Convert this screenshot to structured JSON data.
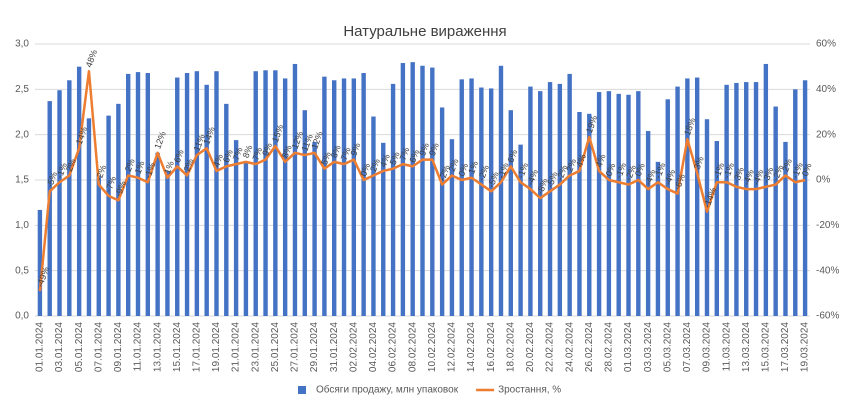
{
  "chart_data": {
    "type": "bar_line",
    "title": "Натуральне вираження",
    "categories": [
      "01.01.2024",
      null,
      "03.01.2024",
      null,
      "05.01.2024",
      null,
      "07.01.2024",
      null,
      "09.01.2024",
      null,
      "11.01.2024",
      null,
      "13.01.2024",
      null,
      "15.01.2024",
      null,
      "17.01.2024",
      null,
      "19.01.2024",
      null,
      "21.01.2024",
      null,
      "23.01.2024",
      null,
      "25.01.2024",
      null,
      "27.01.2024",
      null,
      "29.01.2024",
      null,
      "31.01.2024",
      null,
      "02.02.2024",
      null,
      "04.02.2024",
      null,
      "06.02.2024",
      null,
      "08.02.2024",
      null,
      "10.02.2024",
      null,
      "12.02.2024",
      null,
      "14.02.2024",
      null,
      "16.02.2024",
      null,
      "18.02.2024",
      null,
      "20.02.2024",
      null,
      "22.02.2024",
      null,
      "24.02.2024",
      null,
      "26.02.2024",
      null,
      "28.02.2024",
      null,
      "01.03.2024",
      null,
      "03.03.2024",
      null,
      "05.03.2024",
      null,
      "07.03.2024",
      null,
      "09.03.2024",
      null,
      "11.03.2024",
      null,
      "13.03.2024",
      null,
      "15.03.2024",
      null,
      "17.03.2024",
      null,
      "19.03.2024"
    ],
    "series": [
      {
        "name": "Обсяги продажу, млн упаковок",
        "color": "#4472c4",
        "kind": "bar",
        "values": [
          1.17,
          2.37,
          2.49,
          2.6,
          2.75,
          2.18,
          1.55,
          2.21,
          2.34,
          2.67,
          2.69,
          2.68,
          1.8,
          1.6,
          2.63,
          2.68,
          2.7,
          2.55,
          2.7,
          2.34,
          1.94,
          1.7,
          2.7,
          2.71,
          2.71,
          2.62,
          2.78,
          2.27,
          1.92,
          2.64,
          2.6,
          2.62,
          2.62,
          2.68,
          2.2,
          1.91,
          2.56,
          2.79,
          2.8,
          2.76,
          2.74,
          2.3,
          1.95,
          2.61,
          2.62,
          2.52,
          2.51,
          2.76,
          2.27,
          1.89,
          2.53,
          2.48,
          2.58,
          2.56,
          2.67,
          2.25,
          2.23,
          2.47,
          2.48,
          2.45,
          2.44,
          2.48,
          2.04,
          1.7,
          2.39,
          2.53,
          2.62,
          2.63,
          2.17,
          1.93,
          2.55,
          2.57,
          2.58,
          2.58,
          2.78,
          2.31,
          1.92,
          2.5,
          2.6
        ]
      },
      {
        "name": "Зростання, %",
        "color": "#ed7d31",
        "kind": "line",
        "axis": "y2",
        "values": [
          -49,
          -5,
          -1,
          2,
          14,
          48,
          -2,
          -7,
          -9,
          2,
          1,
          -1,
          12,
          1,
          6,
          2,
          11,
          14,
          4,
          6,
          7,
          8,
          7,
          9,
          15,
          8,
          12,
          11,
          12,
          5,
          8,
          7,
          9,
          0,
          2,
          4,
          5,
          7,
          6,
          9,
          9,
          -2,
          2,
          0,
          1,
          -2,
          -5,
          -1,
          6,
          -1,
          -4,
          -8,
          -5,
          -2,
          2,
          4,
          19,
          4,
          0,
          -1,
          -2,
          0,
          -4,
          -1,
          -4,
          -6,
          18,
          3,
          -14,
          -1,
          -1,
          -3,
          -4,
          -4,
          -3,
          -2,
          2,
          -1,
          0
        ],
        "value_labels": [
          "-49%",
          "-5%",
          "-1%",
          "2%",
          "14%",
          "48%",
          "-2%",
          "-7%",
          "-9%",
          "2%",
          "1%",
          "-1%",
          "12%",
          "1%",
          "6%",
          "2%",
          "11%",
          "14%",
          "4%",
          "6%",
          "7%",
          "8%",
          "7%",
          "9%",
          "15%",
          "8%",
          "12%",
          "11%",
          "12%",
          "5%",
          "8%",
          "7%",
          "9%",
          "0%",
          "2%",
          "4%",
          "5%",
          "7%",
          "6%",
          "9%",
          "9%",
          "-2%",
          "2%",
          "0%",
          "1%",
          "-2%",
          "-5%",
          "-1%",
          "6%",
          "-1%",
          "-4%",
          "-8%",
          "-5%",
          "-2%",
          "2%",
          "4%",
          "19%",
          "4%",
          "0%",
          "-1%",
          "-2%",
          "0%",
          "-4%",
          "-1%",
          "-4%",
          "-6%",
          "18%",
          "3%",
          "-14%",
          "-1%",
          "-1%",
          "-3%",
          "-4%",
          "-4%",
          "-3%",
          "-2%",
          "2%",
          "-1%",
          "0%"
        ]
      }
    ],
    "ylim": [
      0,
      3
    ],
    "yticks": [
      {
        "value": 0,
        "label": "0,0"
      },
      {
        "value": 0.5,
        "label": "0,5"
      },
      {
        "value": 1,
        "label": "1,0"
      },
      {
        "value": 1.5,
        "label": "1,5"
      },
      {
        "value": 2,
        "label": "2,0"
      },
      {
        "value": 2.5,
        "label": "2,5"
      },
      {
        "value": 3,
        "label": "3,0"
      }
    ],
    "y2lim": [
      -60,
      60
    ],
    "y2ticks": [
      {
        "value": -60,
        "label": "-60%"
      },
      {
        "value": -40,
        "label": "-40%"
      },
      {
        "value": -20,
        "label": "-20%"
      },
      {
        "value": 0,
        "label": "0%"
      },
      {
        "value": 20,
        "label": "20%"
      },
      {
        "value": 40,
        "label": "40%"
      },
      {
        "value": 60,
        "label": "60%"
      }
    ],
    "grid": true,
    "legend": "bottom"
  }
}
